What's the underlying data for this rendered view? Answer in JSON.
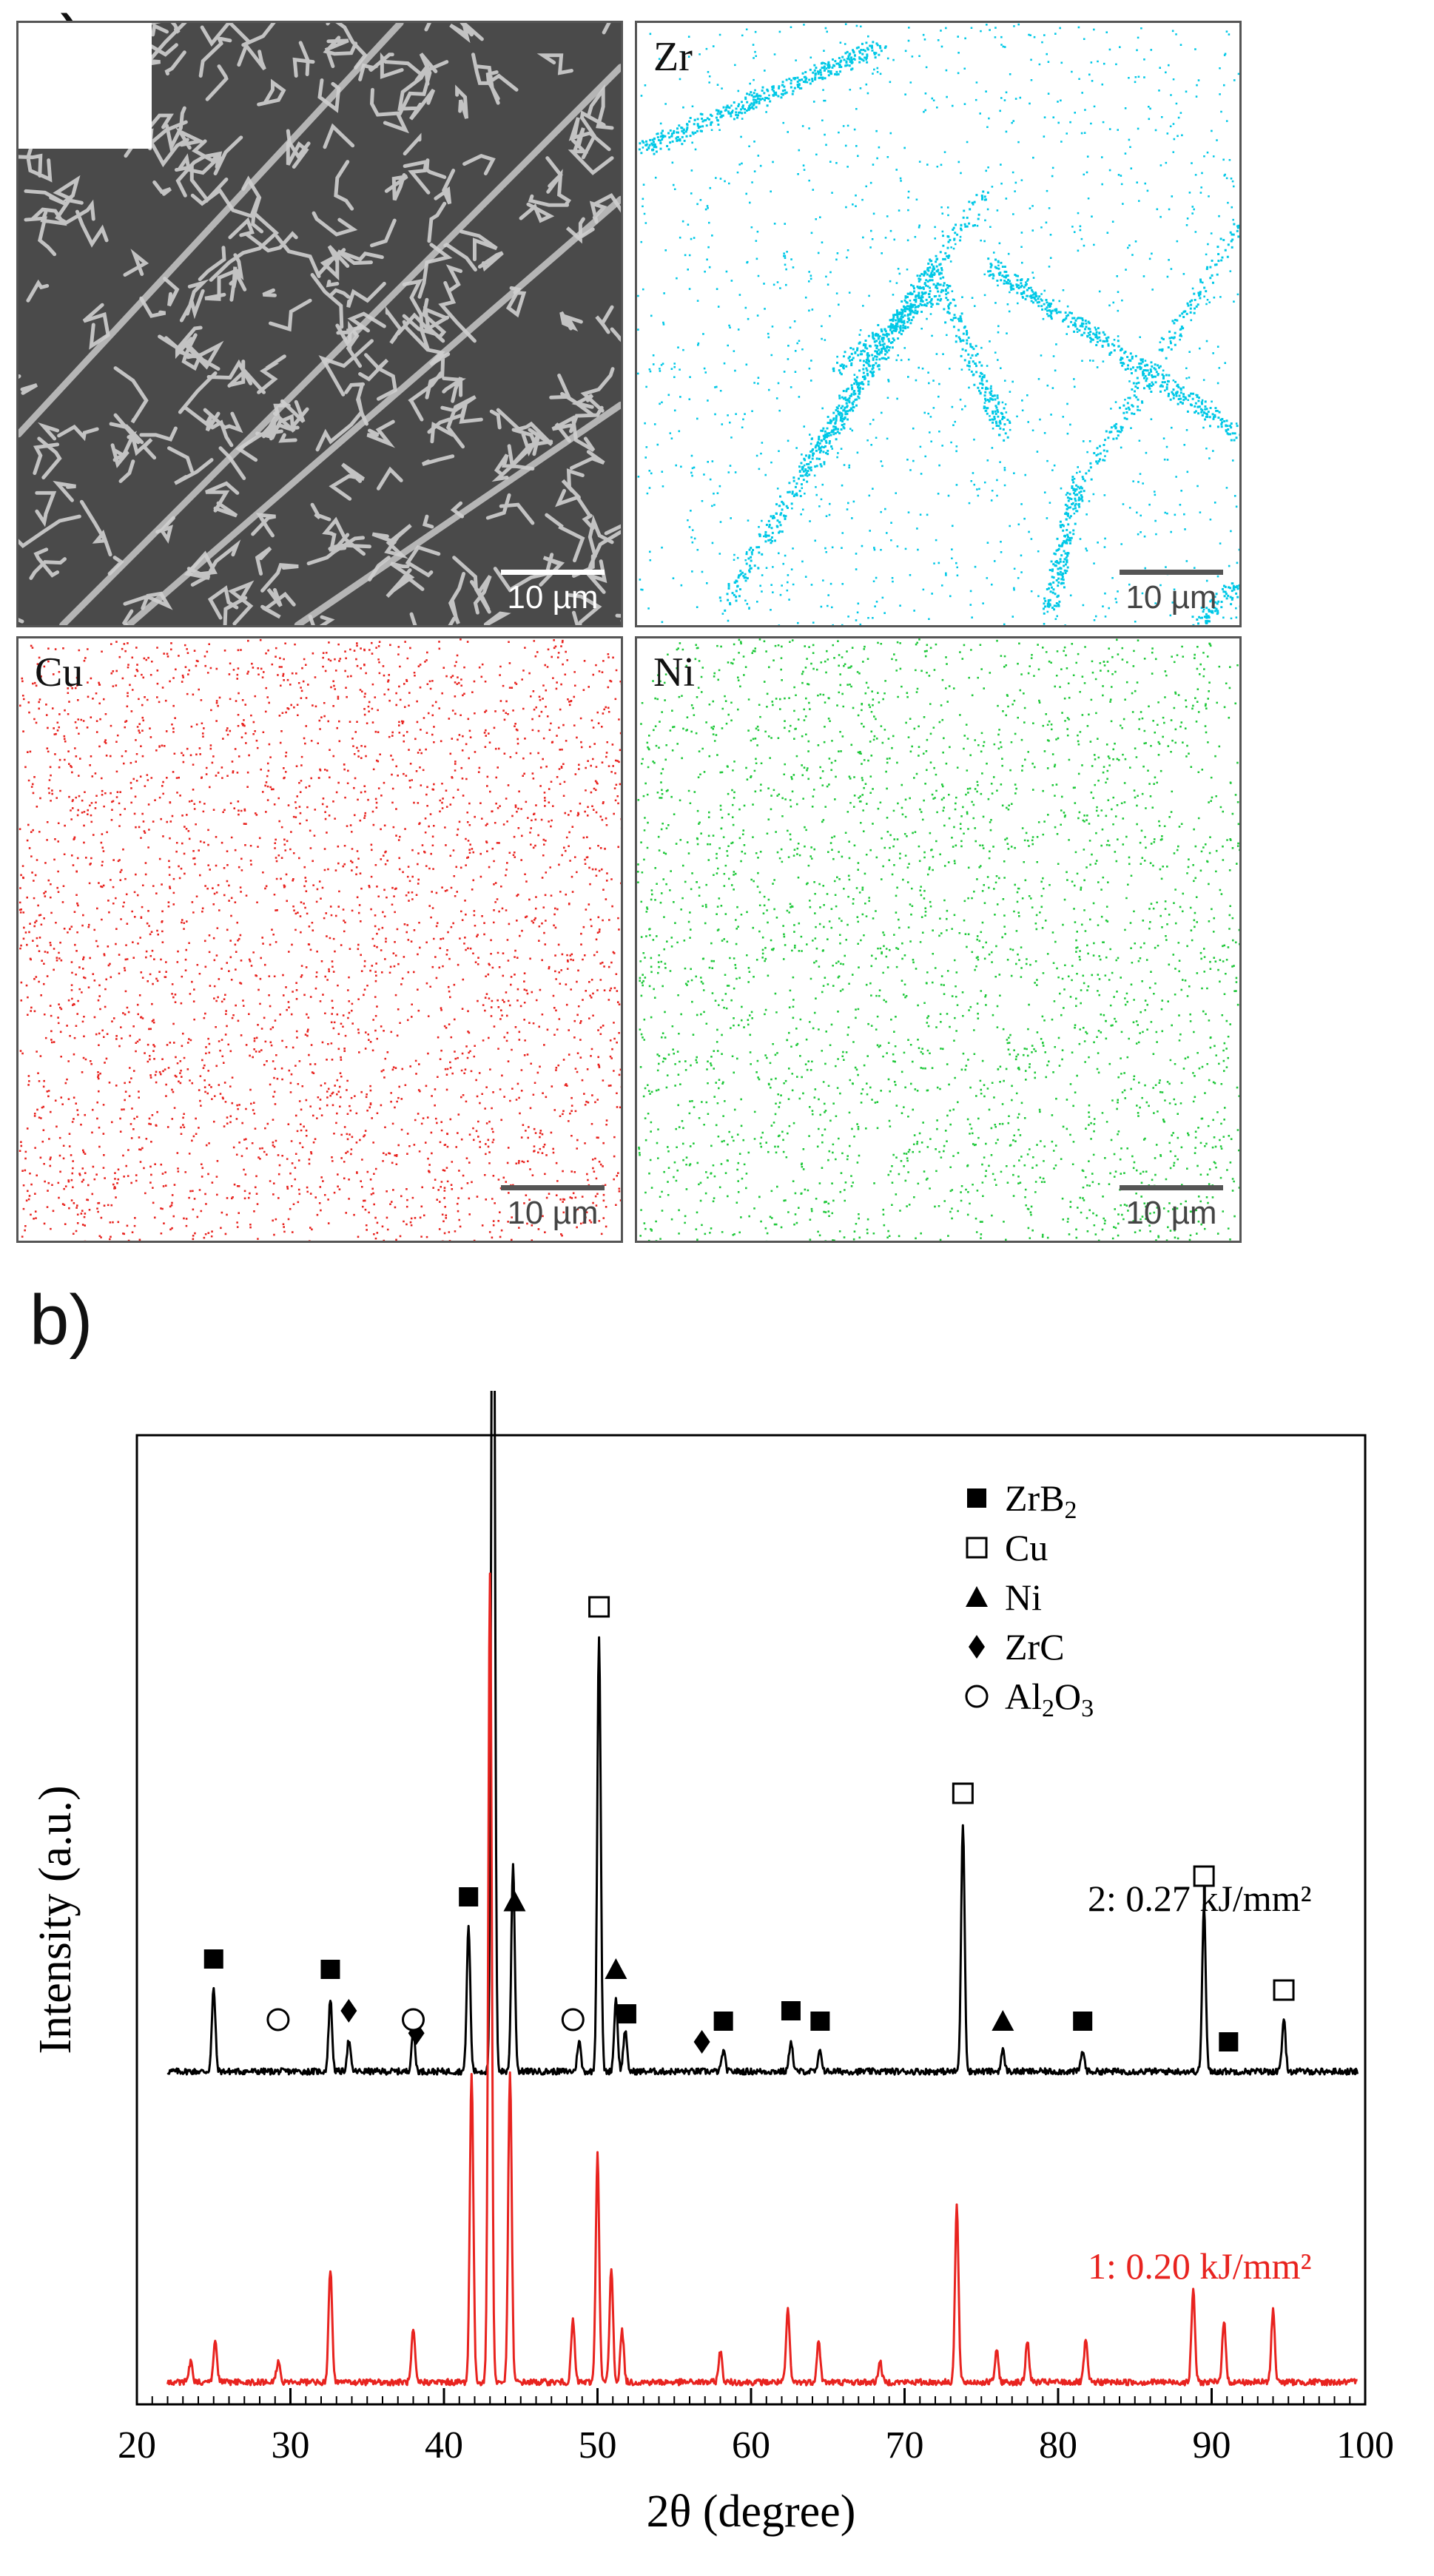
{
  "panel_a": {
    "letter": "a)",
    "maps": [
      {
        "key": "sem",
        "element": "",
        "scale": "10 µm"
      },
      {
        "key": "zr",
        "element": "Zr",
        "scale": "10 µm",
        "color": "#00c8e6"
      },
      {
        "key": "cu",
        "element": "Cu",
        "scale": "10 µm",
        "color": "#e8231f"
      },
      {
        "key": "ni",
        "element": "Ni",
        "scale": "10 µm",
        "color": "#1fc83a"
      }
    ]
  },
  "panel_b": {
    "letter": "b)"
  },
  "chart_data": {
    "type": "line",
    "xlabel": "2θ (degree)",
    "ylabel": "Intensity (a.u.)",
    "xlim": [
      20,
      100
    ],
    "xticks": [
      20,
      30,
      40,
      50,
      60,
      70,
      80,
      90,
      100
    ],
    "yticks_shown": false,
    "legend": {
      "placement": "top-right",
      "entries": [
        {
          "marker": "filled-square",
          "label": "ZrB2"
        },
        {
          "marker": "open-square",
          "label": "Cu"
        },
        {
          "marker": "filled-triangle",
          "label": "Ni"
        },
        {
          "marker": "filled-diamond",
          "label": "ZrC"
        },
        {
          "marker": "open-circle",
          "label": "Al2O3"
        }
      ]
    },
    "series": [
      {
        "name": "2: 0.27 kJ/mm²",
        "color": "#000000",
        "baseline": 0.3,
        "peaks": [
          [
            25.0,
            0.08
          ],
          [
            32.6,
            0.07
          ],
          [
            33.8,
            0.03
          ],
          [
            38.0,
            0.04
          ],
          [
            41.6,
            0.14
          ],
          [
            43.2,
            1.0
          ],
          [
            44.5,
            0.2
          ],
          [
            48.8,
            0.03
          ],
          [
            50.1,
            0.42
          ],
          [
            51.2,
            0.07
          ],
          [
            51.8,
            0.04
          ],
          [
            58.2,
            0.02
          ],
          [
            62.6,
            0.03
          ],
          [
            64.5,
            0.02
          ],
          [
            73.8,
            0.24
          ],
          [
            76.4,
            0.02
          ],
          [
            81.6,
            0.02
          ],
          [
            89.5,
            0.16
          ],
          [
            94.7,
            0.05
          ]
        ]
      },
      {
        "name": "1: 0.20 kJ/mm²",
        "color": "#e8231f",
        "baseline": 0.0,
        "peaks": [
          [
            23.5,
            0.02
          ],
          [
            25.1,
            0.04
          ],
          [
            29.2,
            0.02
          ],
          [
            32.6,
            0.11
          ],
          [
            38.0,
            0.05
          ],
          [
            41.8,
            0.3
          ],
          [
            43.0,
            0.78
          ],
          [
            44.3,
            0.3
          ],
          [
            48.4,
            0.06
          ],
          [
            50.0,
            0.22
          ],
          [
            50.9,
            0.11
          ],
          [
            51.6,
            0.05
          ],
          [
            58.0,
            0.03
          ],
          [
            62.4,
            0.07
          ],
          [
            64.4,
            0.04
          ],
          [
            68.4,
            0.02
          ],
          [
            73.4,
            0.17
          ],
          [
            76.0,
            0.03
          ],
          [
            78.0,
            0.04
          ],
          [
            81.8,
            0.04
          ],
          [
            88.8,
            0.09
          ],
          [
            90.8,
            0.06
          ],
          [
            94.0,
            0.07
          ]
        ]
      }
    ],
    "annotations": [
      {
        "marker": "filled-square",
        "x": 25.0,
        "series": 0
      },
      {
        "marker": "open-circle",
        "x": 29.2,
        "series": 0
      },
      {
        "marker": "filled-square",
        "x": 32.6,
        "series": 0
      },
      {
        "marker": "filled-diamond",
        "x": 33.8,
        "series": 0
      },
      {
        "marker": "filled-diamond",
        "x": 38.2,
        "series": 0
      },
      {
        "marker": "open-circle",
        "x": 38.0,
        "series": 0
      },
      {
        "marker": "filled-square",
        "x": 41.6,
        "series": 0
      },
      {
        "marker": "open-square",
        "x": 43.2,
        "series": 0
      },
      {
        "marker": "filled-triangle",
        "x": 44.6,
        "series": 0
      },
      {
        "marker": "open-circle",
        "x": 48.4,
        "series": 0
      },
      {
        "marker": "open-square",
        "x": 50.1,
        "series": 0
      },
      {
        "marker": "filled-triangle",
        "x": 51.2,
        "series": 0
      },
      {
        "marker": "filled-square",
        "x": 51.9,
        "series": 0
      },
      {
        "marker": "filled-diamond",
        "x": 56.8,
        "series": 0
      },
      {
        "marker": "filled-square",
        "x": 58.2,
        "series": 0
      },
      {
        "marker": "filled-square",
        "x": 62.6,
        "series": 0
      },
      {
        "marker": "filled-square",
        "x": 64.5,
        "series": 0
      },
      {
        "marker": "open-square",
        "x": 73.8,
        "series": 0
      },
      {
        "marker": "filled-triangle",
        "x": 76.4,
        "series": 0
      },
      {
        "marker": "filled-square",
        "x": 81.6,
        "series": 0
      },
      {
        "marker": "open-square",
        "x": 89.5,
        "series": 0
      },
      {
        "marker": "filled-square",
        "x": 91.1,
        "series": 0
      },
      {
        "marker": "open-square",
        "x": 94.7,
        "series": 0
      }
    ]
  }
}
